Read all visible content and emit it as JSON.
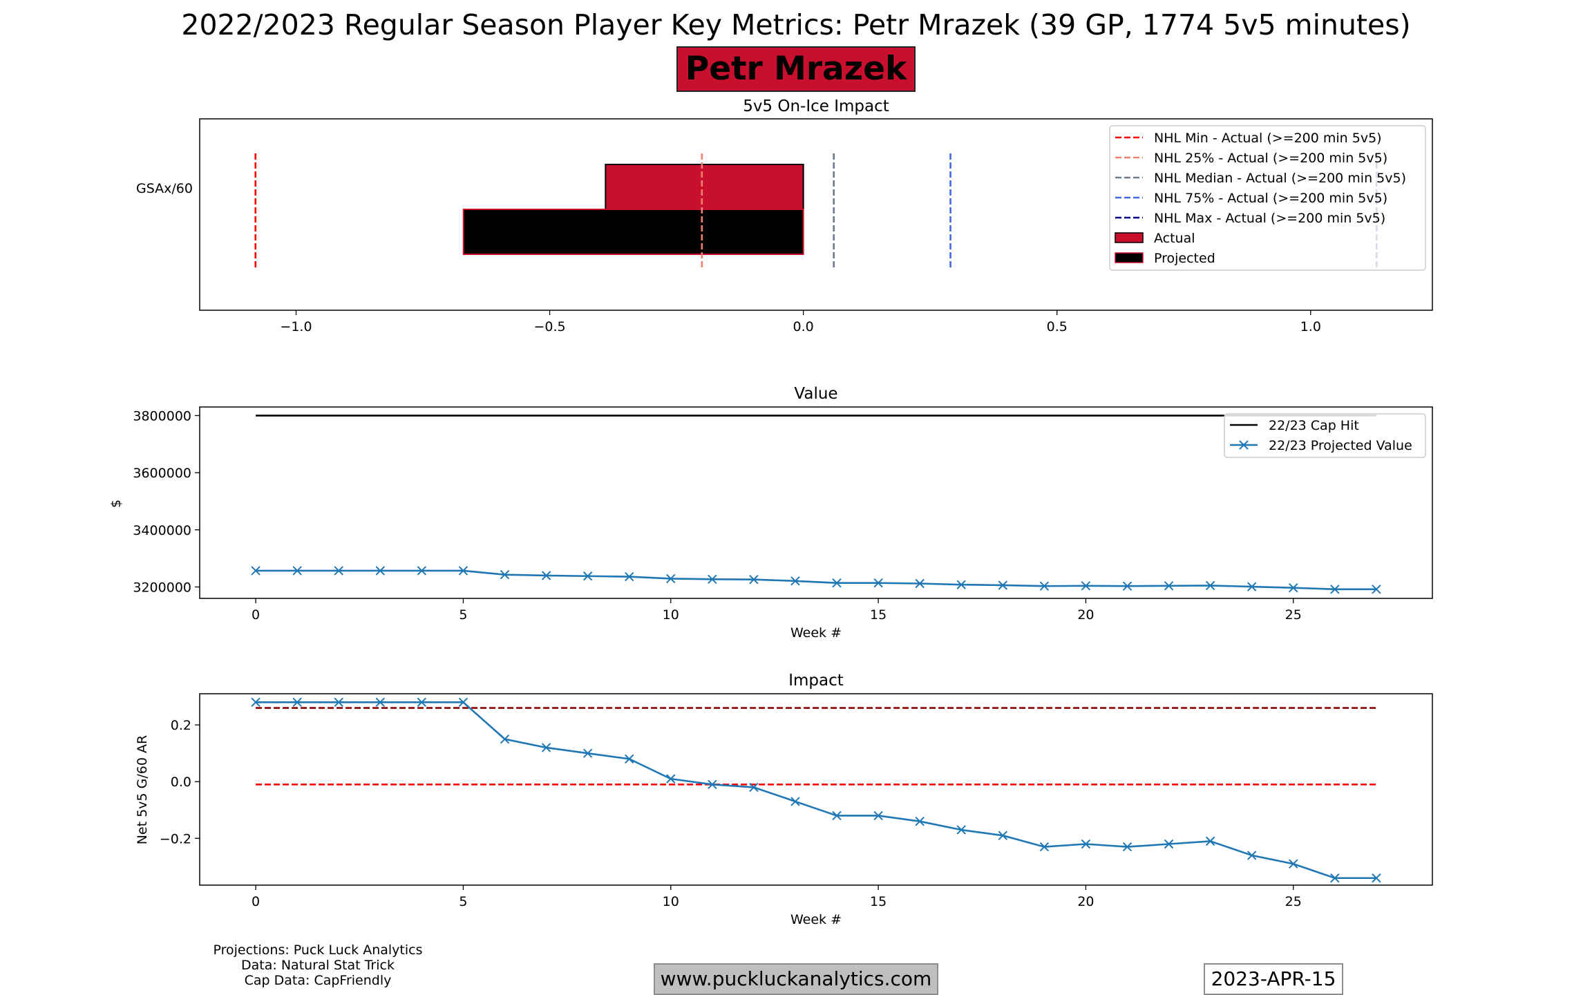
{
  "header": {
    "title": "2022/2023 Regular Season Player Key Metrics: Petr Mrazek (39 GP, 1774 5v5 minutes)",
    "player_name": "Petr Mrazek"
  },
  "colors": {
    "team": "#c8102e",
    "projected": "#000000",
    "series": "#1f77b4",
    "nhl_min": "#ff0000",
    "nhl_25": "#f08070",
    "nhl_median": "#6d7a8c",
    "nhl_75": "#4169e1",
    "nhl_max": "#00008b",
    "impact_upper": "#8b0000",
    "impact_lower": "#ff0000"
  },
  "chart_data": [
    {
      "type": "bar",
      "orientation": "horizontal",
      "title": "5v5 On-Ice Impact",
      "categories": [
        "GSAx/60"
      ],
      "series": [
        {
          "name": "Actual",
          "values": [
            -0.39
          ]
        },
        {
          "name": "Projected",
          "values": [
            -0.67
          ]
        }
      ],
      "reference_lines": [
        {
          "name": "NHL Min - Actual (>=200 min 5v5)",
          "value": -1.08
        },
        {
          "name": "NHL 25% - Actual (>=200 min 5v5)",
          "value": -0.2
        },
        {
          "name": "NHL Median - Actual (>=200 min 5v5)",
          "value": 0.06
        },
        {
          "name": "NHL 75% - Actual (>=200 min 5v5)",
          "value": 0.29
        },
        {
          "name": "NHL Max - Actual (>=200 min 5v5)",
          "value": 1.13
        }
      ],
      "xlim": [
        -1.19,
        1.24
      ],
      "xticks": [
        -1.0,
        -0.5,
        0.0,
        0.5,
        1.0
      ],
      "xtick_labels": [
        "−1.0",
        "−0.5",
        "0.0",
        "0.5",
        "1.0"
      ],
      "legend": "top-right"
    },
    {
      "type": "line",
      "title": "Value",
      "xlabel": "Week #",
      "ylabel": "$",
      "x": [
        0,
        1,
        2,
        3,
        4,
        5,
        6,
        7,
        8,
        9,
        10,
        11,
        12,
        13,
        14,
        15,
        16,
        17,
        18,
        19,
        20,
        21,
        22,
        23,
        24,
        25,
        26,
        27
      ],
      "series": [
        {
          "name": "22/23 Cap Hit",
          "values": [
            3800000,
            3800000,
            3800000,
            3800000,
            3800000,
            3800000,
            3800000,
            3800000,
            3800000,
            3800000,
            3800000,
            3800000,
            3800000,
            3800000,
            3800000,
            3800000,
            3800000,
            3800000,
            3800000,
            3800000,
            3800000,
            3800000,
            3800000,
            3800000,
            3800000,
            3800000,
            3800000,
            3800000
          ]
        },
        {
          "name": "22/23 Projected Value",
          "values": [
            3257000,
            3257000,
            3257000,
            3257000,
            3257000,
            3257000,
            3243000,
            3240000,
            3238000,
            3236000,
            3229000,
            3227000,
            3226000,
            3221000,
            3214000,
            3214000,
            3212000,
            3208000,
            3206000,
            3203000,
            3204000,
            3203000,
            3204000,
            3205000,
            3201000,
            3197000,
            3192000,
            3192000
          ]
        }
      ],
      "xlim": [
        -1.35,
        28.35
      ],
      "ylim": [
        3160000,
        3830000
      ],
      "xticks": [
        0,
        5,
        10,
        15,
        20,
        25
      ],
      "yticks": [
        3200000,
        3400000,
        3600000,
        3800000
      ],
      "legend": "top-right"
    },
    {
      "type": "line",
      "title": "Impact",
      "xlabel": "Week #",
      "ylabel": "Net 5v5 G/60 AR",
      "x": [
        0,
        1,
        2,
        3,
        4,
        5,
        6,
        7,
        8,
        9,
        10,
        11,
        12,
        13,
        14,
        15,
        16,
        17,
        18,
        19,
        20,
        21,
        22,
        23,
        24,
        25,
        26,
        27
      ],
      "series": [
        {
          "name": "Net 5v5 G/60 AR",
          "values": [
            0.28,
            0.28,
            0.28,
            0.28,
            0.28,
            0.28,
            0.15,
            0.12,
            0.1,
            0.08,
            0.01,
            -0.01,
            -0.02,
            -0.07,
            -0.12,
            -0.12,
            -0.14,
            -0.17,
            -0.19,
            -0.23,
            -0.22,
            -0.23,
            -0.22,
            -0.21,
            -0.26,
            -0.29,
            -0.34,
            -0.34
          ]
        }
      ],
      "reference_lines": [
        {
          "name": "upper",
          "value": 0.26
        },
        {
          "name": "lower",
          "value": -0.01
        }
      ],
      "xlim": [
        -1.35,
        28.35
      ],
      "ylim": [
        -0.365,
        0.31
      ],
      "xticks": [
        0,
        5,
        10,
        15,
        20,
        25
      ],
      "yticks": [
        -0.2,
        0.0,
        0.2
      ],
      "ytick_labels": [
        "−0.2",
        "0.0",
        "0.2"
      ]
    }
  ],
  "footer": {
    "credits": [
      "Projections: Puck Luck Analytics",
      "Data: Natural Stat Trick",
      "Cap Data: CapFriendly"
    ],
    "website": "www.puckluckanalytics.com",
    "date": "2023-APR-15"
  }
}
